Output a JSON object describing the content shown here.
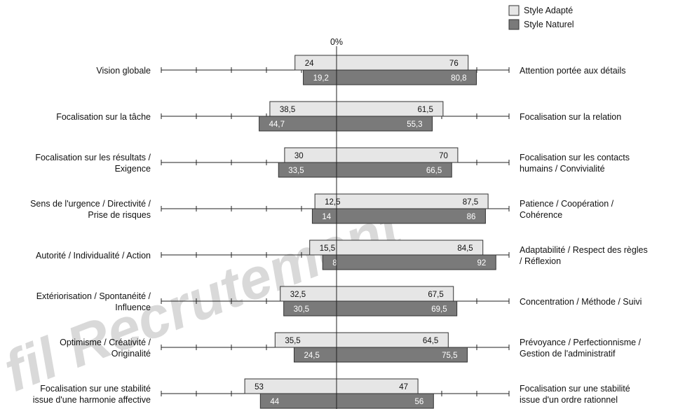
{
  "colors": {
    "adapte_fill": "#e6e6e6",
    "naturel_fill": "#7a7a7a",
    "axis": "#222222",
    "watermark": "#d9d9d9"
  },
  "watermark": "fil Recrutement",
  "legend": [
    "Style Adapté",
    "Style Naturel"
  ],
  "center_label": "0%",
  "chart_data": {
    "type": "bar",
    "orientation": "horizontal-diverging",
    "center": 0,
    "categories_left": [
      "Vision globale",
      "Focalisation sur la tâche",
      "Focalisation sur les résultats / Exigence",
      "Sens de l'urgence / Directivité / Prise de risques",
      "Autorité / Individualité / Action",
      "Extériorisation / Spontanéité / Influence",
      "Optimisme / Créativité / Originalité",
      "Focalisation sur une stabilité issue d'une harmonie affective"
    ],
    "categories_right": [
      "Attention portée aux détails",
      "Focalisation sur la relation",
      "Focalisation sur les contacts humains / Convivialité",
      "Patience / Coopération / Cohérence",
      "Adaptabilité / Respect des règles / Réflexion",
      "Concentration / Méthode / Suivi",
      "Prévoyance / Perfectionnisme / Gestion de l'administratif",
      "Focalisation sur une stabilité issue d'un ordre rationnel"
    ],
    "label_lines_left": [
      [
        "Vision globale"
      ],
      [
        "Focalisation sur la tâche"
      ],
      [
        "Focalisation sur les résultats /",
        "Exigence"
      ],
      [
        "Sens de l'urgence / Directivité /",
        "Prise de risques"
      ],
      [
        "Autorité / Individualité / Action"
      ],
      [
        "Extériorisation / Spontanéité /",
        "Influence"
      ],
      [
        "Optimisme / Créativité /",
        "Originalité"
      ],
      [
        "Focalisation sur une stabilité",
        "issue d'une harmonie affective"
      ]
    ],
    "label_lines_right": [
      [
        "Attention portée aux détails"
      ],
      [
        "Focalisation sur la relation"
      ],
      [
        "Focalisation sur les contacts",
        "humains / Convivialité"
      ],
      [
        "Patience / Coopération /",
        "Cohérence"
      ],
      [
        "Adaptabilité / Respect des règles",
        "/ Réflexion"
      ],
      [
        "Concentration / Méthode / Suivi"
      ],
      [
        "Prévoyance / Perfectionnisme /",
        "Gestion de l'administratif"
      ],
      [
        "Focalisation sur une stabilité",
        "issue d'un ordre rationnel"
      ]
    ],
    "series": [
      {
        "name": "Style Adapté",
        "left": [
          24,
          38.5,
          30,
          12.5,
          15.5,
          32.5,
          35.5,
          53
        ],
        "right": [
          76,
          61.5,
          70,
          87.5,
          84.5,
          67.5,
          64.5,
          47
        ],
        "left_labels": [
          "24",
          "38,5",
          "30",
          "12,5",
          "15,5",
          "32,5",
          "35,5",
          "53"
        ],
        "right_labels": [
          "76",
          "61,5",
          "70",
          "87,5",
          "84,5",
          "67,5",
          "64,5",
          "47"
        ]
      },
      {
        "name": "Style Naturel",
        "left": [
          19.2,
          44.7,
          33.5,
          14,
          8,
          30.5,
          24.5,
          44
        ],
        "right": [
          80.8,
          55.3,
          66.5,
          86,
          92,
          69.5,
          75.5,
          56
        ],
        "left_labels": [
          "19,2",
          "44,7",
          "33,5",
          "14",
          "8",
          "30,5",
          "24,5",
          "44"
        ],
        "right_labels": [
          "80,8",
          "55,3",
          "66,5",
          "86",
          "92",
          "69,5",
          "75,5",
          "56"
        ]
      }
    ]
  }
}
